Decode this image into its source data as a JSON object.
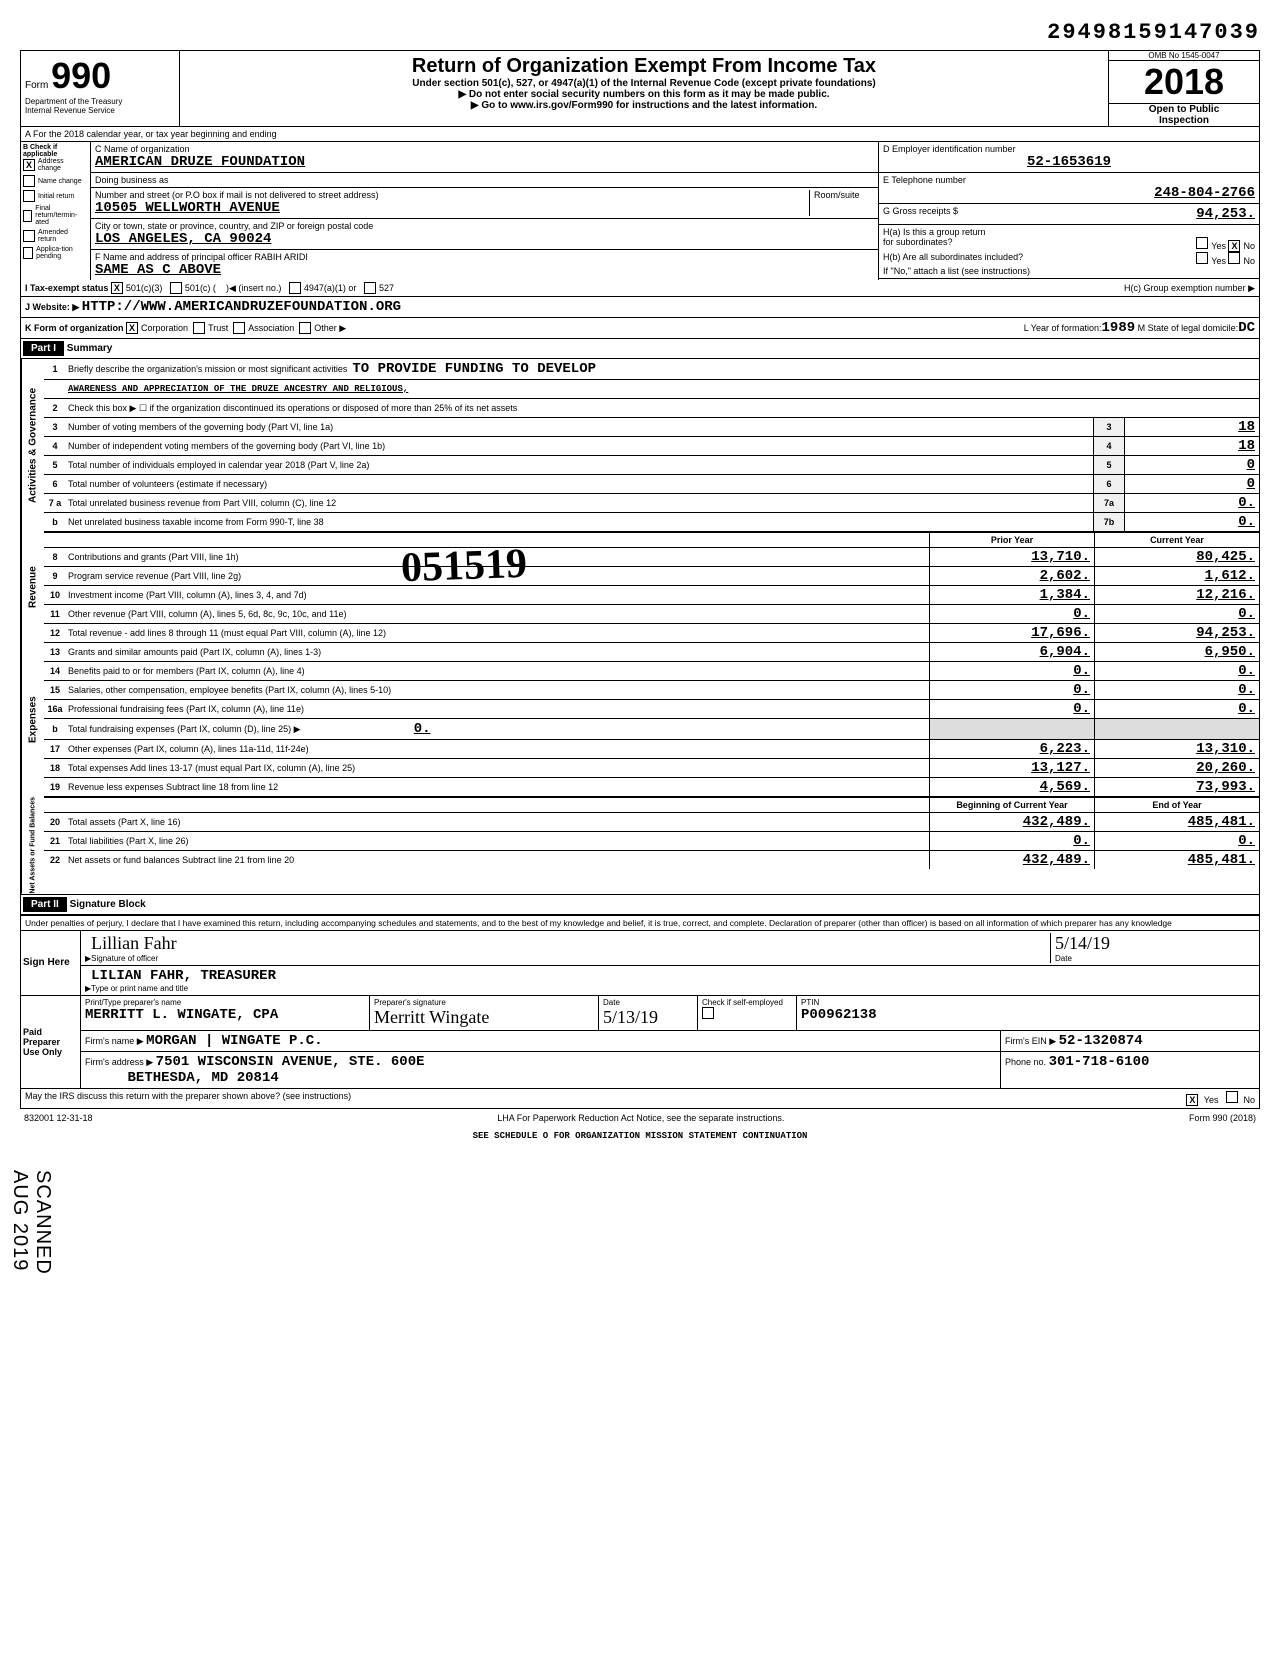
{
  "dln": "29498159147039",
  "header": {
    "form_label": "Form",
    "form_number": "990",
    "dept": "Department of the Treasury",
    "irs": "Internal Revenue Service",
    "title": "Return of Organization Exempt From Income Tax",
    "subtitle": "Under section 501(c), 527, or 4947(a)(1) of the Internal Revenue Code (except private foundations)",
    "line1": "▶ Do not enter social security numbers on this form as it may be made public.",
    "line2": "▶ Go to www.irs.gov/Form990 for instructions and the latest information.",
    "omb": "OMB No 1545-0047",
    "year": "2018",
    "open": "Open to Public",
    "inspection": "Inspection"
  },
  "row_a": "A  For the 2018 calendar year, or tax year beginning                                             and ending",
  "section_b": {
    "label": "B Check if applicable",
    "items": [
      {
        "checked": "X",
        "label": "Address change"
      },
      {
        "checked": "",
        "label": "Name change"
      },
      {
        "checked": "",
        "label": "Initial return"
      },
      {
        "checked": "",
        "label": "Final return/termin-ated"
      },
      {
        "checked": "",
        "label": "Amended return"
      },
      {
        "checked": "",
        "label": "Applica-tion pending"
      }
    ]
  },
  "section_c": {
    "name_label": "C Name of organization",
    "name": "AMERICAN DRUZE FOUNDATION",
    "dba_label": "Doing business as",
    "dba": "",
    "street_label": "Number and street (or P.O box if mail is not delivered to street address)",
    "room_label": "Room/suite",
    "street": "10505 WELLWORTH AVENUE",
    "city_label": "City or town, state or province, country, and ZIP or foreign postal code",
    "city": "LOS ANGELES, CA  90024",
    "officer_label": "F Name and address of principal officer RABIH ARIDI",
    "officer_addr": "SAME AS C ABOVE"
  },
  "section_d": {
    "label": "D Employer identification number",
    "ein": "52-1653619",
    "e_label": "E Telephone number",
    "phone": "248-804-2766",
    "g_label": "G Gross receipts $",
    "gross": "94,253.",
    "h_a": "H(a) Is this a group return",
    "h_a2": "for subordinates?",
    "h_b": "H(b) Are all subordinates included?",
    "h_note": "If \"No,\" attach a list (see instructions)",
    "h_c": "H(c) Group exemption number ▶",
    "yes": "Yes",
    "no": "No",
    "no_checked": "X"
  },
  "row_i": {
    "label": "I  Tax-exempt status",
    "c3_checked": "X",
    "c3": "501(c)(3)",
    "c_other": "501(c) (",
    "insert": ")◀ (insert no.)",
    "a4947": "4947(a)(1) or",
    "s527": "527"
  },
  "row_j": {
    "label": "J  Website: ▶",
    "url": "HTTP://WWW.AMERICANDRUZEFOUNDATION.ORG"
  },
  "row_k": {
    "label": "K  Form of organization",
    "corp_checked": "X",
    "corp": "Corporation",
    "trust": "Trust",
    "assoc": "Association",
    "other": "Other ▶",
    "l_label": "L Year of formation:",
    "l_year": "1989",
    "m_label": "M State of legal domicile:",
    "m_state": "DC"
  },
  "part1": {
    "header": "Part I",
    "title": "Summary"
  },
  "governance": {
    "vtab": "Activities & Governance",
    "l1": "Briefly describe the organization's mission or most significant activities",
    "l1_val": "TO PROVIDE FUNDING TO DEVELOP",
    "l1b": "AWARENESS AND APPRECIATION OF THE DRUZE ANCESTRY AND RELIGIOUS,",
    "l2": "Check this box ▶ ☐ if the organization discontinued its operations or disposed of more than 25% of its net assets",
    "l3": "Number of voting members of the governing body (Part VI, line 1a)",
    "l3_val": "18",
    "l4": "Number of independent voting members of the governing body (Part VI, line 1b)",
    "l4_val": "18",
    "l5": "Total number of individuals employed in calendar year 2018 (Part V, line 2a)",
    "l5_val": "0",
    "l6": "Total number of volunteers (estimate if necessary)",
    "l6_val": "0",
    "l7a": "Total unrelated business revenue from Part VIII, column (C), line 12",
    "l7a_val": "0.",
    "l7b": "Net unrelated business taxable income from Form 990-T, line 38",
    "l7b_val": "0."
  },
  "col_headers": {
    "prior": "Prior Year",
    "current": "Current Year"
  },
  "revenue": {
    "vtab": "Revenue",
    "rows": [
      {
        "n": "8",
        "label": "Contributions and grants (Part VIII, line 1h)",
        "p": "13,710.",
        "c": "80,425."
      },
      {
        "n": "9",
        "label": "Program service revenue (Part VIII, line 2g)",
        "p": "2,602.",
        "c": "1,612."
      },
      {
        "n": "10",
        "label": "Investment income (Part VIII, column (A), lines 3, 4, and 7d)",
        "p": "1,384.",
        "c": "12,216."
      },
      {
        "n": "11",
        "label": "Other revenue (Part VIII, column (A), lines 5, 6d, 8c, 9c, 10c, and 11e)",
        "p": "0.",
        "c": "0."
      },
      {
        "n": "12",
        "label": "Total revenue - add lines 8 through 11 (must equal Part VIII, column (A), line 12)",
        "p": "17,696.",
        "c": "94,253."
      }
    ]
  },
  "expenses": {
    "vtab": "Expenses",
    "rows": [
      {
        "n": "13",
        "label": "Grants and similar amounts paid (Part IX, column (A), lines 1-3)",
        "p": "6,904.",
        "c": "6,950."
      },
      {
        "n": "14",
        "label": "Benefits paid to or for members (Part IX, column (A), line 4)",
        "p": "0.",
        "c": "0."
      },
      {
        "n": "15",
        "label": "Salaries, other compensation, employee benefits (Part IX, column (A), lines 5-10)",
        "p": "0.",
        "c": "0."
      },
      {
        "n": "16a",
        "label": "Professional fundraising fees (Part IX, column (A), line 11e)",
        "p": "0.",
        "c": "0."
      }
    ],
    "l16b": "Total fundraising expenses (Part IX, column (D), line 25)  ▶",
    "l16b_val": "0.",
    "rows2": [
      {
        "n": "17",
        "label": "Other expenses (Part IX, column (A), lines 11a-11d, 11f-24e)",
        "p": "6,223.",
        "c": "13,310."
      },
      {
        "n": "18",
        "label": "Total expenses Add lines 13-17 (must equal Part IX, column (A), line 25)",
        "p": "13,127.",
        "c": "20,260."
      },
      {
        "n": "19",
        "label": "Revenue less expenses Subtract line 18 from line 12",
        "p": "4,569.",
        "c": "73,993."
      }
    ]
  },
  "netassets": {
    "vtab": "Net Assets or Fund Balances",
    "headers": {
      "begin": "Beginning of Current Year",
      "end": "End of Year"
    },
    "rows": [
      {
        "n": "20",
        "label": "Total assets (Part X, line 16)",
        "p": "432,489.",
        "c": "485,481."
      },
      {
        "n": "21",
        "label": "Total liabilities (Part X, line 26)",
        "p": "0.",
        "c": "0."
      },
      {
        "n": "22",
        "label": "Net assets or fund balances Subtract line 21 from line 20",
        "p": "432,489.",
        "c": "485,481."
      }
    ]
  },
  "stamp": "051519",
  "part2": {
    "header": "Part II",
    "title": "Signature Block"
  },
  "sig": {
    "perjury": "Under penalties of perjury, I declare that I have examined this return, including accompanying schedules and statements, and to the best of my knowledge and belief, it is true, correct, and complete. Declaration of preparer (other than officer) is based on all information of which preparer has any knowledge",
    "sign_here": "Sign Here",
    "sig_of_officer": "Signature of officer",
    "officer_sig": "Lillian Fahr",
    "date_label": "Date",
    "date": "5/14/19",
    "name_title": "LILIAN FAHR, TREASURER",
    "type_label": "Type or print name and title"
  },
  "preparer": {
    "label": "Paid Preparer Use Only",
    "print_label": "Print/Type preparer's name",
    "name": "MERRITT L. WINGATE, CPA",
    "sig_label": "Preparer's signature",
    "date_label": "Date",
    "date": "5/13/19",
    "check_label": "Check if self-employed",
    "ptin_label": "PTIN",
    "ptin": "P00962138",
    "firm_label": "Firm's name ▶",
    "firm": "MORGAN | WINGATE P.C.",
    "ein_label": "Firm's EIN ▶",
    "ein": "52-1320874",
    "addr_label": "Firm's address ▶",
    "addr1": "7501 WISCONSIN AVENUE, STE. 600E",
    "addr2": "BETHESDA, MD 20814",
    "phone_label": "Phone no.",
    "phone": "301-718-6100"
  },
  "discuss": {
    "label": "May the IRS discuss this return with the preparer shown above? (see instructions)",
    "yes": "Yes",
    "no": "No",
    "yes_checked": "X"
  },
  "footer": {
    "left": "832001 12-31-18",
    "center": "LHA For Paperwork Reduction Act Notice, see the separate instructions.",
    "right": "Form 990 (2018)"
  },
  "continuation": "SEE SCHEDULE O FOR ORGANIZATION MISSION STATEMENT CONTINUATION",
  "scanned": "SCANNED AUG 2019"
}
